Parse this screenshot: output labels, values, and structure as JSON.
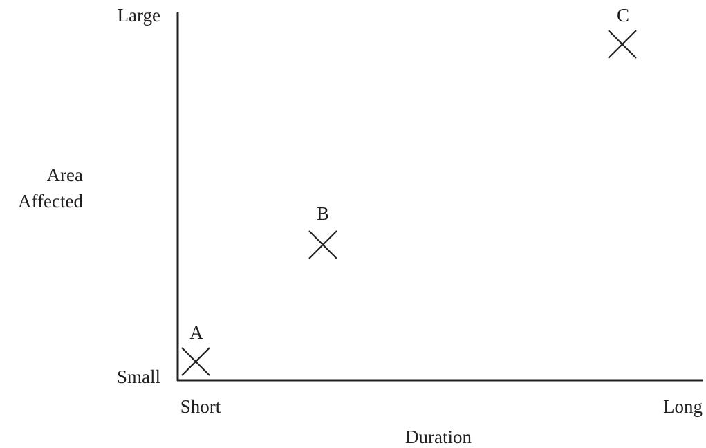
{
  "axes": {
    "y_label": [
      "Area",
      "Affected"
    ],
    "y_high": "Large",
    "y_low": "Small",
    "x_label": "Duration",
    "x_low": "Short",
    "x_high": "Long"
  },
  "points": [
    {
      "label": "A"
    },
    {
      "label": "B"
    },
    {
      "label": "C"
    }
  ]
}
